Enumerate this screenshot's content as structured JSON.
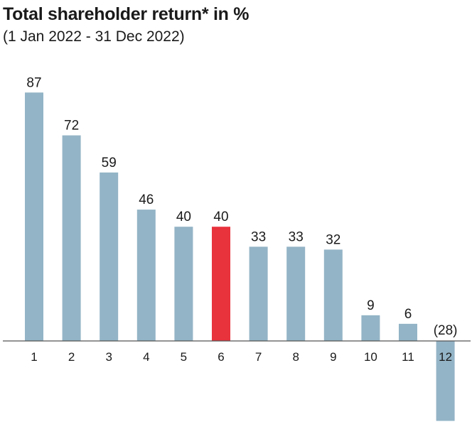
{
  "chart_data": {
    "type": "bar",
    "title": "Total shareholder return* in %",
    "subtitle": "(1 Jan 2022 - 31 Dec 2022)",
    "xlabel": "",
    "ylabel": "",
    "categories": [
      "1",
      "2",
      "3",
      "4",
      "5",
      "6",
      "7",
      "8",
      "9",
      "10",
      "11",
      "12"
    ],
    "values": [
      87,
      72,
      59,
      46,
      40,
      40,
      33,
      33,
      32,
      9,
      6,
      -28
    ],
    "value_labels": [
      "87",
      "72",
      "59",
      "46",
      "40",
      "40",
      "33",
      "33",
      "32",
      "9",
      "6",
      "(28)"
    ],
    "highlight_index": 5,
    "ylim": [
      -28,
      87
    ],
    "grid": false,
    "legend": "none"
  },
  "colors": {
    "bar": "#93b4c6",
    "highlight": "#e8323c",
    "axis": "#555555"
  }
}
